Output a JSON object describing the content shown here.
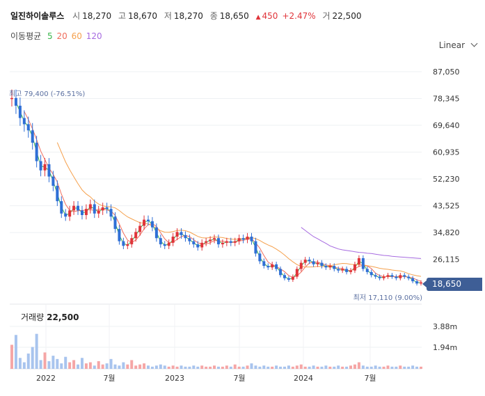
{
  "header": {
    "name": "일진하이솔루스",
    "open_label": "시",
    "open": "18,270",
    "high_label": "고",
    "high": "18,670",
    "low_label": "저",
    "low": "18,270",
    "close_label": "종",
    "close": "18,650",
    "change_arrow": "▲",
    "change": "450",
    "change_pct": "+2.47%",
    "volume_label": "거",
    "volume": "22,500"
  },
  "ma_legend": {
    "label": "이동평균",
    "items": [
      {
        "text": "5",
        "color": "#39b54a"
      },
      {
        "text": "20",
        "color": "#f06c5c"
      },
      {
        "text": "60",
        "color": "#f5a04c"
      },
      {
        "text": "120",
        "color": "#a66ae0"
      }
    ]
  },
  "scale_selector": {
    "label": "Linear"
  },
  "price_badge": "18,650",
  "high_marker": "최고 79,400 (-76.51%)",
  "low_marker": "최저 17,110 (9.00%)",
  "volume_panel": {
    "title": "거래량",
    "value": "22,500"
  },
  "colors": {
    "up": "#e0343a",
    "down": "#2f6fd6",
    "badge": "#3e5e96",
    "volume": "#f5a6a6"
  },
  "chart_data": {
    "type": "candlestick",
    "y_ticks": [
      "87,050",
      "78,345",
      "69,640",
      "60,935",
      "52,230",
      "43,525",
      "34,820",
      "26,115"
    ],
    "ylim": [
      17000,
      87050
    ],
    "volume_ticks": [
      "3.88m",
      "1.94m"
    ],
    "x_ticks": [
      "2022",
      "7월",
      "2023",
      "7월",
      "2024",
      "7월"
    ],
    "price_path": [
      78500,
      76000,
      72000,
      70000,
      68000,
      64000,
      58000,
      55000,
      57000,
      53000,
      50000,
      45000,
      41000,
      40000,
      42000,
      43500,
      42000,
      40500,
      42500,
      44000,
      41000,
      42000,
      43000,
      42500,
      40000,
      36000,
      32000,
      30500,
      31000,
      33000,
      35000,
      37000,
      39000,
      38500,
      36500,
      33000,
      31000,
      30500,
      31500,
      33500,
      35000,
      34000,
      33000,
      32000,
      31000,
      30000,
      31500,
      32000,
      32500,
      33000,
      31000,
      31500,
      32000,
      31500,
      32000,
      33000,
      32500,
      33500,
      32000,
      28000,
      25500,
      24000,
      23500,
      24500,
      23000,
      21000,
      20000,
      19500,
      20500,
      23000,
      25000,
      26000,
      25500,
      24500,
      25000,
      24000,
      23500,
      24000,
      23000,
      22500,
      23000,
      22000,
      22500,
      24500,
      26500,
      23000,
      22000,
      21000,
      20500,
      20000,
      20500,
      21000,
      20500,
      20000,
      21000,
      20500,
      20000,
      19000,
      18270,
      18650
    ],
    "volume_path": [
      2.2,
      3.1,
      1.0,
      0.6,
      1.4,
      2.0,
      3.2,
      0.8,
      1.5,
      0.7,
      1.2,
      0.9,
      0.5,
      1.1,
      0.6,
      0.8,
      0.4,
      1.0,
      0.5,
      0.6,
      0.3,
      0.7,
      0.4,
      0.5,
      0.9,
      0.4,
      0.3,
      0.6,
      0.4,
      0.8,
      0.3,
      0.4,
      0.5,
      0.3,
      0.2,
      0.3,
      0.4,
      0.3,
      0.2,
      0.3,
      0.2,
      0.3,
      0.2,
      0.2,
      0.3,
      0.2,
      0.3,
      0.2,
      0.2,
      0.3,
      0.2,
      0.2,
      0.3,
      0.2,
      0.4,
      0.2,
      0.2,
      0.3,
      0.5,
      0.3,
      0.2,
      0.3,
      0.2,
      0.2,
      0.3,
      0.2,
      0.2,
      0.3,
      0.2,
      0.3,
      0.4,
      0.2,
      0.2,
      0.3,
      0.2,
      0.2,
      0.3,
      0.2,
      0.2,
      0.3,
      0.2,
      0.2,
      0.3,
      0.4,
      0.6,
      0.3,
      0.2,
      0.2,
      0.3,
      0.2,
      0.2,
      0.3,
      0.2,
      0.2,
      0.3,
      0.2,
      0.2,
      0.3,
      0.2,
      0.2
    ],
    "ma120_path": [
      null,
      null,
      null,
      null,
      null,
      null,
      null,
      null,
      null,
      null,
      null,
      null,
      null,
      null,
      null,
      null,
      null,
      null,
      null,
      null,
      null,
      null,
      null,
      null,
      null,
      null,
      null,
      null,
      null,
      null,
      null,
      null,
      null,
      null,
      null,
      null,
      null,
      null,
      null,
      null,
      null,
      null,
      null,
      null,
      null,
      null,
      null,
      null,
      null,
      null,
      null,
      null,
      null,
      null,
      null,
      null,
      null,
      null,
      null,
      null,
      null,
      null,
      null,
      null,
      null,
      null,
      null,
      null,
      null,
      null,
      36500,
      35500,
      34500,
      33500,
      32800,
      32000,
      31300,
      30500,
      30000,
      29500,
      29200,
      29000,
      28800,
      28600,
      28400,
      28300,
      28100,
      28000,
      27800,
      27600,
      27400,
      27300,
      27100,
      27000,
      26900,
      26800,
      26700,
      26600,
      26500,
      26400
    ]
  }
}
